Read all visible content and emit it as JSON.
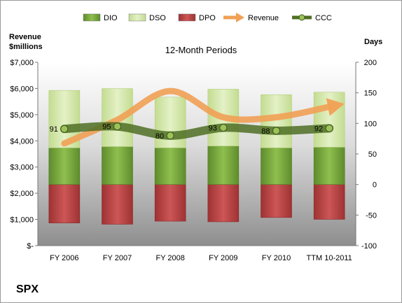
{
  "chart_data": {
    "type": "bar",
    "title": "12-Month Periods",
    "left_axis_label_line1": "Revenue",
    "left_axis_label_line2": "$millions",
    "right_axis_label": "Days",
    "company": "SPX",
    "categories": [
      "FY 2006",
      "FY 2007",
      "FY 2008",
      "FY 2009",
      "FY 2010",
      "TTM 10-2011"
    ],
    "left_axis": {
      "range": [
        0,
        7000
      ],
      "ticks": [
        "$-",
        "$1,000",
        "$2,000",
        "$3,000",
        "$4,000",
        "$5,000",
        "$6,000",
        "$7,000"
      ],
      "tick_values": [
        0,
        1000,
        2000,
        3000,
        4000,
        5000,
        6000,
        7000
      ]
    },
    "right_axis": {
      "range": [
        -100,
        200
      ],
      "ticks": [
        "-100",
        "-50",
        "0",
        "50",
        "100",
        "150",
        "200"
      ],
      "tick_values": [
        -100,
        -50,
        0,
        50,
        100,
        150,
        200
      ]
    },
    "legend": [
      {
        "name": "DIO",
        "kind": "bar",
        "color": "#6e9f36"
      },
      {
        "name": "DSO",
        "kind": "bar",
        "color": "#d1e6a6"
      },
      {
        "name": "DPO",
        "kind": "bar",
        "color": "#b63f40"
      },
      {
        "name": "Revenue",
        "kind": "arrow",
        "color": "#f1a054"
      },
      {
        "name": "CCC",
        "kind": "line",
        "color": "#4f6e24"
      }
    ],
    "series": [
      {
        "name": "DPO",
        "axis": "right",
        "values": [
          -63,
          -65,
          -60,
          -61,
          -54,
          -57
        ]
      },
      {
        "name": "DIO",
        "axis": "right",
        "values": [
          60,
          62,
          60,
          63,
          60,
          61
        ]
      },
      {
        "name": "DSO",
        "axis": "right",
        "values": [
          94,
          95,
          83,
          93,
          87,
          90
        ]
      },
      {
        "name": "CCC",
        "axis": "right",
        "values": [
          91,
          95,
          80,
          93,
          88,
          92
        ]
      },
      {
        "name": "Revenue",
        "axis": "left",
        "values": [
          3900,
          4800,
          5900,
          4900,
          4900,
          5300
        ]
      }
    ],
    "ccc_labels": [
      "91",
      "95",
      "80",
      "93",
      "88",
      "92"
    ],
    "legend_position": "top",
    "grid": false
  }
}
